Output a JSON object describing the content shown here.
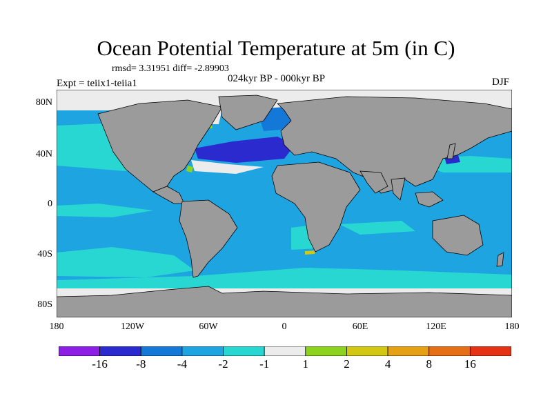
{
  "title": "Ocean Potential Temperature at 5m (in C)",
  "stats": "rmsd= 3.31951 diff= -2.89903",
  "period": "024kyr BP - 000kyr BP",
  "experiment": "Expt = teiix1-teiia1",
  "season": "DJF",
  "lat_labels": [
    "80N",
    "40N",
    "0",
    "40S",
    "80S"
  ],
  "lon_labels": [
    "180",
    "120W",
    "60W",
    "0",
    "60E",
    "120E",
    "180"
  ],
  "colorbar": {
    "colors": [
      "#8c1ee6",
      "#2a2acf",
      "#1478d9",
      "#1ea5e1",
      "#28d7d2",
      "#ececec",
      "#8cd21e",
      "#d2c814",
      "#e6a014",
      "#e66e14",
      "#e63214"
    ],
    "labels": [
      "-16",
      "-8",
      "-4",
      "-2",
      "-1",
      "1",
      "2",
      "4",
      "8",
      "16"
    ]
  },
  "colors": {
    "land": "#9b9b9b",
    "ocean_default": "#1ea5e1",
    "coast": "#000000"
  }
}
